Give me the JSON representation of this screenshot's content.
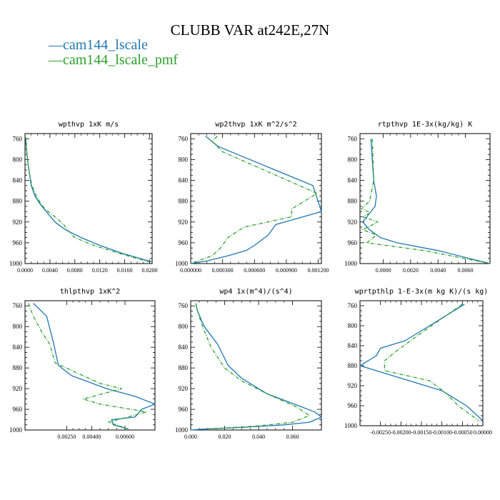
{
  "figure": {
    "title": "CLUBB VAR at242E,27N"
  },
  "legend": [
    {
      "label": "cam144_lscale",
      "color": "#1f77b4"
    },
    {
      "label": "cam144_lscale_pmf",
      "color": "#2ca02c"
    }
  ],
  "chart_data": [
    {
      "type": "line",
      "title": "wpthvp  1xK m/s",
      "xlim": [
        0.0,
        0.0204
      ],
      "ylim": [
        750,
        1000
      ],
      "yinvert": true,
      "yticks": [
        760,
        800,
        840,
        880,
        920,
        960,
        1000
      ],
      "xticks": [
        0.0,
        0.004,
        0.008,
        0.012,
        0.016,
        0.02
      ],
      "xticklabels": [
        "0.0000",
        "0.0040",
        "0.0080",
        "0.0120",
        "0.0160",
        "0.0200"
      ],
      "series": [
        {
          "name": "cam144_lscale",
          "x": [
            0.0001,
            0.0002,
            0.0004,
            0.0007,
            0.001,
            0.0016,
            0.0024,
            0.0034,
            0.0048,
            0.0065,
            0.009,
            0.012,
            0.0155,
            0.0204
          ],
          "y": [
            757,
            775,
            800,
            825,
            850,
            870,
            885,
            900,
            920,
            935,
            950,
            965,
            980,
            997
          ]
        },
        {
          "name": "cam144_lscale_pmf",
          "x": [
            0.0001,
            0.0002,
            0.0004,
            0.0007,
            0.0011,
            0.002,
            0.0032,
            0.0048,
            0.0062,
            0.0068,
            0.008,
            0.011,
            0.015,
            0.02
          ],
          "y": [
            757,
            775,
            800,
            825,
            850,
            875,
            895,
            910,
            925,
            935,
            950,
            965,
            980,
            997
          ]
        }
      ]
    },
    {
      "type": "line",
      "title": "wp2thvp  1xK m^2/s^2",
      "xlim": [
        0.0,
        0.00123
      ],
      "ylim": [
        750,
        1000
      ],
      "yinvert": true,
      "yticks": [
        760,
        800,
        840,
        880,
        920,
        960,
        1000
      ],
      "xticks": [
        0.0,
        0.0003,
        0.0006,
        0.0009,
        0.0012
      ],
      "xticklabels": [
        "0.000000",
        "0.000300",
        "0.000600",
        "0.000900",
        "0.001200"
      ],
      "series": [
        {
          "name": "cam144_lscale",
          "x": [
            0.00014,
            0.00026,
            0.00115,
            0.00123,
            0.0008,
            0.00073,
            0.0006,
            0.00052,
            0.00035,
            0.00015,
            0.0
          ],
          "y": [
            755,
            775,
            850,
            900,
            925,
            945,
            965,
            975,
            985,
            995,
            1000
          ]
        },
        {
          "name": "cam144_lscale_pmf",
          "x": [
            0.00025,
            0.0002,
            0.0003,
            0.0008,
            0.00119,
            0.00095,
            0.00095,
            0.0005,
            0.00035,
            0.00028,
            0.0002,
            0.0
          ],
          "y": [
            755,
            765,
            785,
            830,
            865,
            895,
            910,
            930,
            950,
            970,
            985,
            1000
          ]
        }
      ]
    },
    {
      "type": "line",
      "title": "rtpthvp  1E-3x(kg/kg) K",
      "xlim": [
        -0.0017,
        0.0078
      ],
      "ylim": [
        750,
        1000
      ],
      "yinvert": true,
      "yticks": [
        760,
        800,
        840,
        880,
        920,
        960,
        1000
      ],
      "xticks": [
        0.0,
        0.002,
        0.004,
        0.006
      ],
      "xticklabels": [
        "0.0000",
        "0.0020",
        "0.0040",
        "0.0060"
      ],
      "series": [
        {
          "name": "cam144_lscale",
          "x": [
            -0.0009,
            -0.0008,
            -0.0007,
            -0.0005,
            -0.0006,
            -0.0012,
            -0.0015,
            -0.001,
            -0.0002,
            0.001,
            0.004,
            0.0078
          ],
          "y": [
            760,
            800,
            840,
            870,
            890,
            910,
            920,
            935,
            950,
            960,
            975,
            1000
          ]
        },
        {
          "name": "cam144_lscale_pmf",
          "x": [
            -0.0008,
            -0.0007,
            -0.001,
            -0.0016,
            -0.0009,
            -0.0015,
            -0.0004,
            -0.0015,
            -0.0005,
            -0.0012,
            0.003,
            0.0078
          ],
          "y": [
            760,
            840,
            880,
            895,
            902,
            910,
            920,
            935,
            945,
            960,
            975,
            1000
          ]
        }
      ]
    },
    {
      "type": "line",
      "title": "thlpthvp  1xK^2",
      "xlim": [
        0.0,
        0.0078
      ],
      "ylim": [
        750,
        1000
      ],
      "yinvert": true,
      "yticks": [
        760,
        800,
        840,
        880,
        920,
        960,
        1000
      ],
      "xticks": [
        0.0025,
        0.004,
        0.006
      ],
      "xticklabels": [
        "0.00250",
        "0.00400",
        "0.00600"
      ],
      "series": [
        {
          "name": "cam144_lscale",
          "x": [
            0.0005,
            0.0013,
            0.0017,
            0.002,
            0.0028,
            0.0049,
            0.0066,
            0.0078,
            0.007,
            0.0066,
            0.0052,
            0.0053,
            0.0062
          ],
          "y": [
            755,
            780,
            830,
            875,
            895,
            920,
            935,
            950,
            960,
            975,
            980,
            990,
            998
          ]
        },
        {
          "name": "cam144_lscale_pmf",
          "x": [
            0.0002,
            0.0005,
            0.001,
            0.0015,
            0.0018,
            0.0045,
            0.0058,
            0.0035,
            0.0045,
            0.0073,
            0.005,
            0.0062
          ],
          "y": [
            755,
            780,
            810,
            835,
            870,
            910,
            920,
            940,
            950,
            965,
            985,
            998
          ]
        }
      ]
    },
    {
      "type": "line",
      "title": "wp4  1x(m^4)/(s^4)",
      "xlim": [
        0.0,
        0.077
      ],
      "ylim": [
        750,
        1000
      ],
      "yinvert": true,
      "yticks": [
        760,
        800,
        840,
        880,
        920,
        960,
        1000
      ],
      "xticks": [
        0.0,
        0.02,
        0.04,
        0.06
      ],
      "xticklabels": [
        "0.000",
        "0.020",
        "0.040",
        "0.060"
      ],
      "series": [
        {
          "name": "cam144_lscale",
          "x": [
            0.003,
            0.004,
            0.008,
            0.016,
            0.022,
            0.03,
            0.045,
            0.065,
            0.073,
            0.077,
            0.07,
            0.055,
            0.03,
            0.008,
            0.0
          ],
          "y": [
            755,
            770,
            800,
            835,
            875,
            900,
            930,
            955,
            965,
            975,
            985,
            990,
            995,
            998,
            1000
          ]
        },
        {
          "name": "cam144_lscale_pmf",
          "x": [
            0.003,
            0.004,
            0.007,
            0.012,
            0.02,
            0.03,
            0.045,
            0.062,
            0.07,
            0.06,
            0.04,
            0.01
          ],
          "y": [
            755,
            770,
            800,
            840,
            880,
            905,
            930,
            955,
            972,
            985,
            992,
            998
          ]
        }
      ]
    },
    {
      "type": "line",
      "title": "wprtpthlp  1-E-3x(m kg K)/(s kg)",
      "xlim": [
        -0.003,
        0.0
      ],
      "ylim": [
        750,
        1000
      ],
      "yinvert": true,
      "yticks": [
        760,
        800,
        840,
        880,
        920,
        960,
        1000
      ],
      "xticks": [
        -0.0025,
        -0.002,
        -0.0015,
        -0.001,
        -0.0005,
        0.0
      ],
      "xticklabels": [
        "-0.00250",
        "-0.00200",
        "-0.00150",
        "-0.00100",
        "-0.00050",
        "0.00000"
      ],
      "series": [
        {
          "name": "cam144_lscale",
          "x": [
            -0.00045,
            -0.0011,
            -0.0019,
            -0.0025,
            -0.0026,
            -0.003,
            -0.0022,
            -0.001,
            -0.0004,
            0.0
          ],
          "y": [
            757,
            790,
            830,
            845,
            860,
            880,
            900,
            930,
            960,
            990
          ]
        },
        {
          "name": "cam144_lscale_pmf",
          "x": [
            -0.0005,
            -0.0009,
            -0.0016,
            -0.0021,
            -0.0024,
            -0.0024,
            -0.0013,
            -0.0009,
            -0.0006,
            -0.0001
          ],
          "y": [
            757,
            780,
            820,
            850,
            870,
            890,
            910,
            935,
            960,
            990
          ]
        }
      ]
    }
  ]
}
